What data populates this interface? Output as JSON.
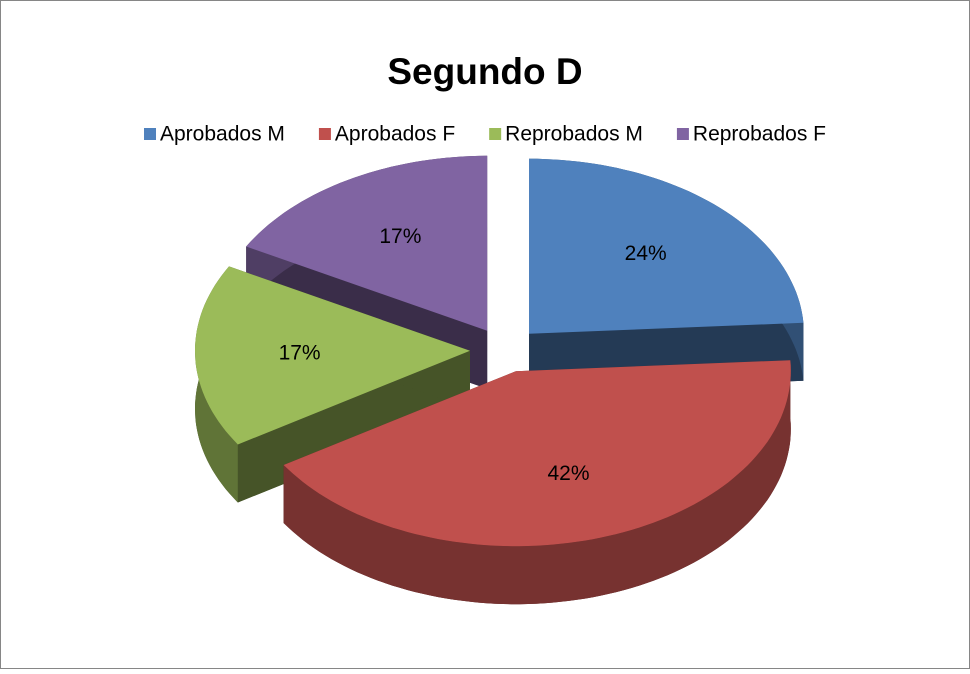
{
  "chart_data": {
    "type": "pie",
    "title": "Segundo D",
    "categories": [
      "Aprobados M",
      "Aprobados F",
      "Reprobados M",
      "Reprobados F"
    ],
    "values": [
      24,
      42,
      17,
      17
    ],
    "value_labels": [
      "24%",
      "42%",
      "17%",
      "17%"
    ],
    "colors": [
      "#4f81bd",
      "#c0504d",
      "#9bbb59",
      "#8064a2"
    ],
    "legend": "top"
  }
}
